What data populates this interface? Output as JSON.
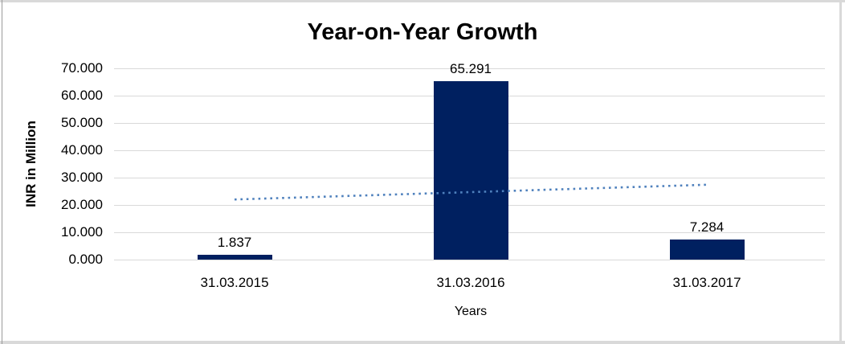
{
  "chart_data": {
    "type": "bar",
    "title": "Year-on-Year Growth",
    "xlabel": "Years",
    "ylabel": "INR in Million",
    "categories": [
      "31.03.2015",
      "31.03.2016",
      "31.03.2017"
    ],
    "values": [
      1.837,
      65.291,
      7.284
    ],
    "data_labels": [
      "1.837",
      "65.291",
      "7.284"
    ],
    "y_ticks": [
      "0.000",
      "10.000",
      "20.000",
      "30.000",
      "40.000",
      "50.000",
      "60.000",
      "70.000"
    ],
    "ylim": [
      0,
      70
    ],
    "grid": true,
    "legend": "none",
    "trendline": {
      "type": "linear",
      "style": "dotted",
      "start_value": 22.0,
      "end_value": 27.4
    },
    "colors": {
      "bar": "#002060",
      "trendline": "#4f81bd",
      "gridline": "#d9d9d9",
      "text": "#000000",
      "frame": "#d9d9d9"
    }
  }
}
